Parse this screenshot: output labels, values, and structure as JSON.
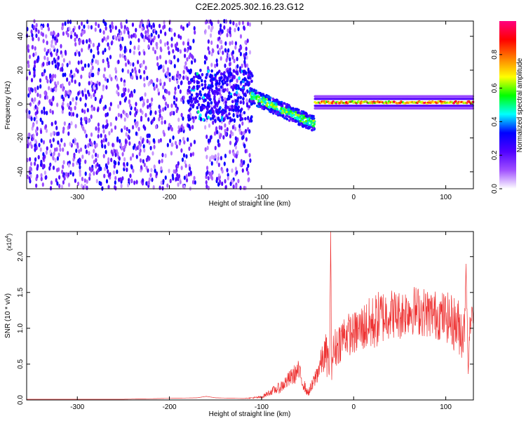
{
  "title": "C2E2.2025.302.16.23.G12",
  "chart_data": [
    {
      "type": "heatmap",
      "name": "spectrogram",
      "xlabel": "Height of straight line (km)",
      "ylabel": "Frequency (Hz)",
      "xlim": [
        -355,
        130
      ],
      "ylim": [
        -50,
        49
      ],
      "xticks": [
        -300,
        -200,
        -100,
        0,
        100
      ],
      "xtick_labels": [
        "-300",
        "-200",
        "-100",
        "0",
        "100"
      ],
      "yticks": [
        -40,
        -20,
        0,
        20,
        40
      ],
      "ytick_labels": [
        "-40",
        "-20",
        "0",
        "20",
        "40"
      ],
      "colorbar": {
        "label": "Normalized spectral amplitude",
        "range": [
          0,
          1
        ],
        "ticks": [
          0.0,
          0.2,
          0.4,
          0.6,
          0.8
        ],
        "tick_labels": [
          "0.0",
          "0.2",
          "0.4",
          "0.6",
          "0.8"
        ],
        "colors": [
          "#ffffff",
          "#a050ff",
          "#5000ff",
          "#0000ff",
          "#00ffff",
          "#00ff00",
          "#ffff00",
          "#ff8000",
          "#ff0000",
          "#ff0080"
        ]
      },
      "regions": [
        {
          "x_range": [
            -355,
            -112
          ],
          "freq_range": [
            -50,
            49
          ],
          "pattern": "broadband noise",
          "amplitude": 0.15
        },
        {
          "x_range": [
            -180,
            -110
          ],
          "freq_range": [
            -10,
            20
          ],
          "pattern": "diffuse dense core",
          "amplitude": 0.25
        },
        {
          "x_range": [
            -112,
            -42
          ],
          "freq_center": [
            5,
            -12
          ],
          "pattern": "descending band",
          "amplitude": 0.5
        },
        {
          "x_range": [
            -42,
            130
          ],
          "freq_center": 1,
          "pattern": "narrow constant band",
          "amplitude": 0.95
        }
      ]
    },
    {
      "type": "line",
      "name": "snr",
      "xlabel": "Height of straight line (km)",
      "ylabel": "SNR (10 * v/v)",
      "scale_label": "(x10",
      "scale_exp": "4",
      "scale_close": ")",
      "xlim": [
        -355,
        130
      ],
      "ylim": [
        0,
        2.35
      ],
      "xticks": [
        -300,
        -200,
        -100,
        0,
        100
      ],
      "xtick_labels": [
        "-300",
        "-200",
        "-100",
        "0",
        "100"
      ],
      "yticks": [
        0.0,
        0.5,
        1.0,
        1.5,
        2.0
      ],
      "ytick_labels": [
        "0.0",
        "0.5",
        "1.0",
        "1.5",
        "2.0"
      ],
      "color": "#ee3333",
      "series": [
        {
          "name": "SNR",
          "x": [
            -355,
            -250,
            -170,
            -160,
            -150,
            -120,
            -100,
            -90,
            -80,
            -70,
            -60,
            -55,
            -50,
            -45,
            -40,
            -35,
            -30,
            -26,
            -25,
            -24,
            -20,
            -10,
            0,
            10,
            20,
            30,
            40,
            50,
            60,
            70,
            80,
            90,
            100,
            110,
            115,
            120,
            122,
            124,
            127,
            130
          ],
          "y": [
            0.01,
            0.01,
            0.03,
            0.05,
            0.03,
            0.02,
            0.04,
            0.12,
            0.18,
            0.3,
            0.42,
            0.25,
            0.1,
            0.2,
            0.38,
            0.55,
            0.68,
            0.5,
            2.35,
            0.6,
            0.75,
            0.95,
            0.95,
            1.05,
            1.1,
            1.2,
            1.25,
            1.22,
            1.3,
            1.28,
            1.25,
            1.22,
            1.2,
            1.1,
            1.05,
            0.95,
            1.9,
            0.5,
            1.15,
            1.2
          ],
          "noise": [
            0,
            0,
            0,
            0,
            0,
            0,
            0.02,
            0.05,
            0.08,
            0.12,
            0.15,
            0.1,
            0.05,
            0.1,
            0.15,
            0.2,
            0.3,
            0.25,
            0,
            0.3,
            0.3,
            0.3,
            0.3,
            0.35,
            0.4,
            0.4,
            0.35,
            0.35,
            0.35,
            0.35,
            0.35,
            0.35,
            0.35,
            0.4,
            0.4,
            0.4,
            0,
            0.3,
            0.2,
            0.2
          ]
        }
      ]
    }
  ]
}
